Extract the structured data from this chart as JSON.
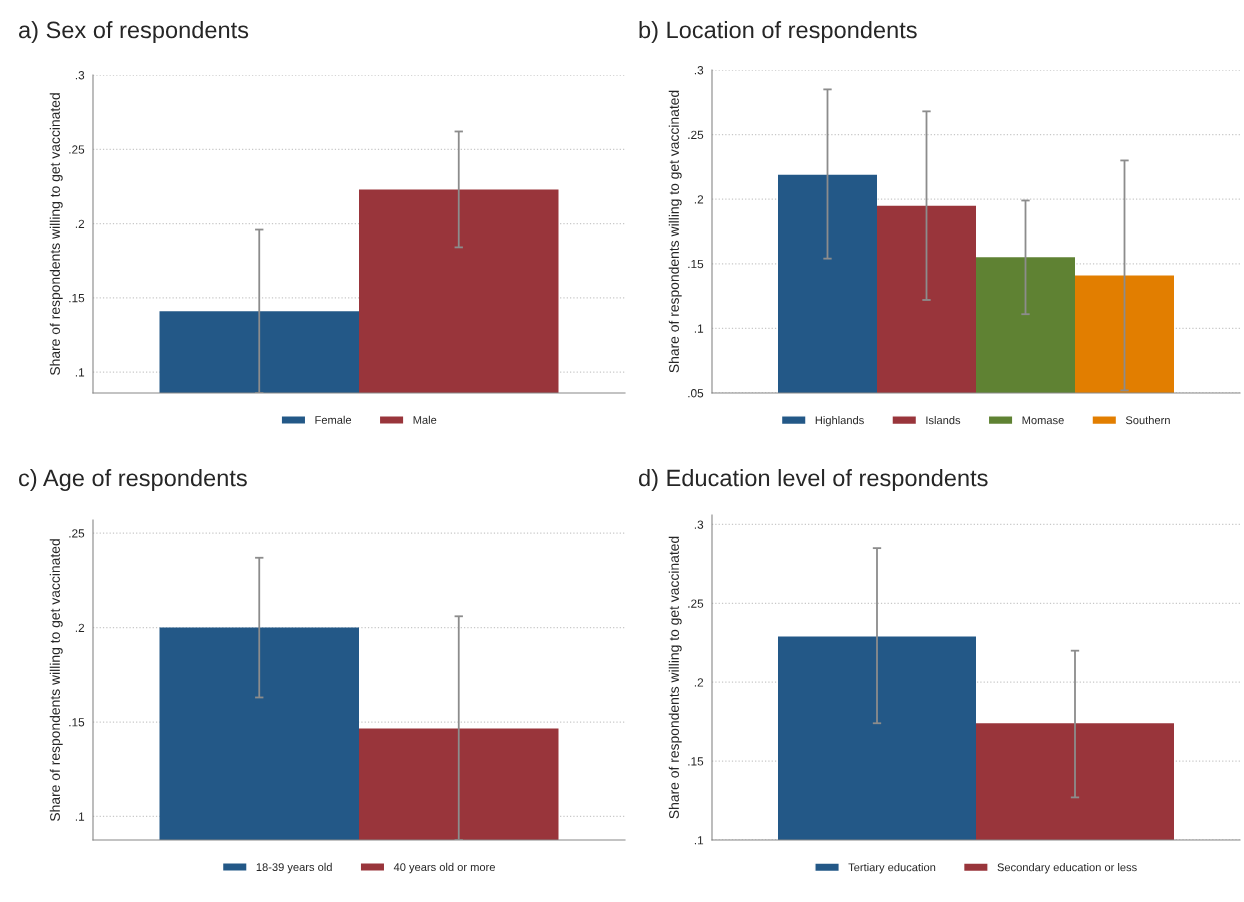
{
  "chart_data": [
    {
      "type": "bar",
      "title": "a) Sex of respondents",
      "ylabel": "Share of respondents willing to get vaccinated",
      "categories": [
        null
      ],
      "series": [
        {
          "name": "Female",
          "color": "#235887",
          "values": [
            0.141
          ],
          "errors": [
            [
              0.086,
              0.196
            ]
          ]
        },
        {
          "name": "Male",
          "color": "#99353b",
          "values": [
            0.223
          ],
          "errors": [
            [
              0.184,
              0.262
            ]
          ]
        }
      ],
      "ylim": [
        0.086,
        0.3
      ],
      "yticks": [
        {
          "value": 0.1,
          "label": ".1"
        },
        {
          "value": 0.15,
          "label": ".15"
        },
        {
          "value": 0.2,
          "label": ".2"
        },
        {
          "value": 0.25,
          "label": ".25"
        },
        {
          "value": 0.3,
          "label": ".3"
        }
      ],
      "grid": "y",
      "legend": "bottom",
      "tick_labels": "y"
    },
    {
      "type": "bar",
      "title": "b) Location of respondents",
      "ylabel": "Share of respondents willing to get vaccinated",
      "categories": [
        null
      ],
      "series": [
        {
          "name": "Highlands",
          "color": "#235887",
          "values": [
            0.219
          ],
          "errors": [
            [
              0.154,
              0.285
            ]
          ]
        },
        {
          "name": "Islands",
          "color": "#99353b",
          "values": [
            0.195
          ],
          "errors": [
            [
              0.122,
              0.268
            ]
          ]
        },
        {
          "name": "Momase",
          "color": "#5f8233",
          "values": [
            0.155
          ],
          "errors": [
            [
              0.111,
              0.199
            ]
          ]
        },
        {
          "name": "Southern",
          "color": "#e27e00",
          "values": [
            0.141
          ],
          "errors": [
            [
              0.052,
              0.23
            ]
          ]
        }
      ],
      "ylim": [
        0.05,
        0.3
      ],
      "yticks": [
        {
          "value": 0.05,
          "label": ".05"
        },
        {
          "value": 0.1,
          "label": ".1"
        },
        {
          "value": 0.15,
          "label": ".15"
        },
        {
          "value": 0.2,
          "label": ".2"
        },
        {
          "value": 0.25,
          "label": ".25"
        },
        {
          "value": 0.3,
          "label": ".3"
        }
      ],
      "grid": "y",
      "legend": "bottom",
      "tick_labels": "y"
    },
    {
      "type": "bar",
      "title": "c) Age of respondents",
      "ylabel": "Share of respondents willing to get vaccinated",
      "categories": [
        null
      ],
      "series": [
        {
          "name": "18-39 years old",
          "color": "#235887",
          "values": [
            0.2
          ],
          "errors": [
            [
              0.163,
              0.237
            ]
          ]
        },
        {
          "name": "40 years old or more",
          "color": "#99353b",
          "values": [
            0.1465
          ],
          "errors": [
            [
              0.0875,
              0.206
            ]
          ]
        }
      ],
      "ylim": [
        0.0875,
        0.257
      ],
      "yticks": [
        {
          "value": 0.1,
          "label": ".1"
        },
        {
          "value": 0.15,
          "label": ".15"
        },
        {
          "value": 0.2,
          "label": ".2"
        },
        {
          "value": 0.25,
          "label": ".25"
        }
      ],
      "grid": "y",
      "legend": "bottom",
      "tick_labels": "y"
    },
    {
      "type": "bar",
      "title": "d) Education level of respondents",
      "ylabel": "Share of respondents willing to get vaccinated",
      "categories": [
        null
      ],
      "series": [
        {
          "name": "Tertiary education",
          "color": "#235887",
          "values": [
            0.229
          ],
          "errors": [
            [
              0.174,
              0.285
            ]
          ]
        },
        {
          "name": "Secondary education or less",
          "color": "#99353b",
          "values": [
            0.174
          ],
          "errors": [
            [
              0.127,
              0.22
            ]
          ]
        }
      ],
      "ylim": [
        0.1,
        0.306
      ],
      "yticks": [
        {
          "value": 0.1,
          "label": ".1"
        },
        {
          "value": 0.15,
          "label": ".15"
        },
        {
          "value": 0.2,
          "label": ".2"
        },
        {
          "value": 0.25,
          "label": ".25"
        },
        {
          "value": 0.3,
          "label": ".3"
        }
      ],
      "grid": "y",
      "legend": "bottom",
      "tick_labels": "y"
    }
  ]
}
